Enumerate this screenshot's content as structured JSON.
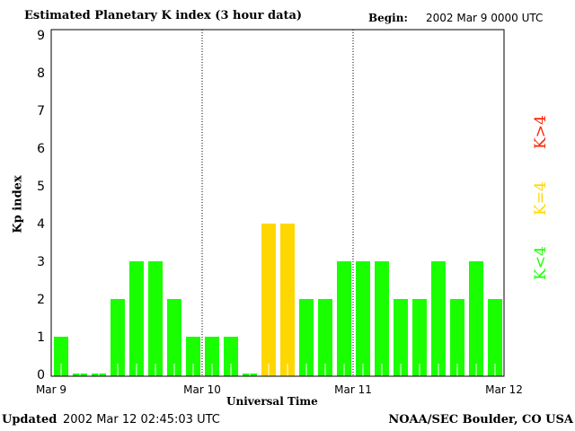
{
  "header": {
    "title": "Estimated Planetary K index (3 hour data)",
    "begin_label": "Begin:",
    "begin_value": "2002 Mar 9 0000 UTC"
  },
  "footer": {
    "updated_label": "Updated",
    "updated_value": "2002 Mar 12 02:45:03 UTC",
    "credit": "NOAA/SEC Boulder, CO USA"
  },
  "legend": [
    {
      "label": "K<4",
      "color": "#1aff00"
    },
    {
      "label": "K=4",
      "color": "#ffd700"
    },
    {
      "label": "K>4",
      "color": "#ff2000"
    }
  ],
  "chart_data": {
    "type": "bar",
    "title": "Estimated Planetary K index (3 hour data)",
    "xlabel": "Universal Time",
    "ylabel": "Kp index",
    "ylim": [
      0,
      9
    ],
    "yticks": [
      "0",
      "1",
      "2",
      "3",
      "4",
      "5",
      "6",
      "7",
      "8",
      "9"
    ],
    "xticks": [
      "Mar 9",
      "Mar 10",
      "Mar 11",
      "Mar 12"
    ],
    "interval_hours": 3,
    "values": [
      1,
      0,
      0,
      2,
      3,
      3,
      2,
      1,
      1,
      1,
      0,
      4,
      4,
      2,
      2,
      3,
      3,
      3,
      2,
      2,
      3,
      2,
      3,
      2
    ],
    "grid": "dotted vertical lines at day boundaries"
  }
}
